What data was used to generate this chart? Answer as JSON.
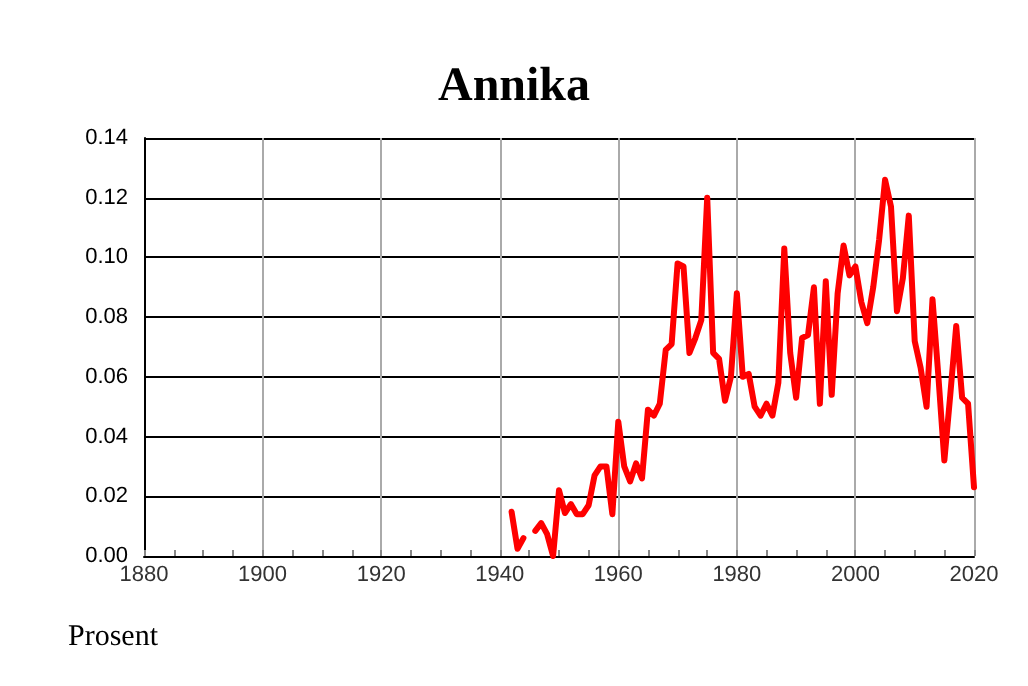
{
  "chart_data": {
    "type": "line",
    "title": "Annika",
    "ylabel": "Prosent",
    "x": [
      1942,
      1943,
      1944,
      1945,
      1946,
      1947,
      1948,
      1949,
      1950,
      1951,
      1952,
      1953,
      1954,
      1955,
      1956,
      1957,
      1958,
      1959,
      1960,
      1961,
      1962,
      1963,
      1964,
      1965,
      1966,
      1967,
      1968,
      1969,
      1970,
      1971,
      1972,
      1973,
      1974,
      1975,
      1976,
      1977,
      1978,
      1979,
      1980,
      1981,
      1982,
      1983,
      1984,
      1985,
      1986,
      1987,
      1988,
      1989,
      1990,
      1991,
      1992,
      1993,
      1994,
      1995,
      1996,
      1997,
      1998,
      1999,
      2000,
      2001,
      2002,
      2003,
      2004,
      2005,
      2006,
      2007,
      2008,
      2009,
      2010,
      2011,
      2012,
      2013,
      2014,
      2015,
      2016,
      2017,
      2018,
      2019,
      2020
    ],
    "series": [
      {
        "color": "#ff0000",
        "values": [
          0.0148,
          0.0024,
          0.006,
          null,
          0.0084,
          0.011,
          0.0073,
          0,
          0.022,
          0.0144,
          0.0174,
          0.014,
          0.014,
          0.017,
          0.027,
          0.03,
          0.03,
          0.014,
          0.045,
          0.03,
          0.025,
          0.031,
          0.026,
          0.049,
          0.047,
          0.051,
          0.069,
          0.071,
          0.098,
          0.097,
          0.068,
          0.073,
          0.079,
          0.12,
          0.068,
          0.066,
          0.052,
          0.06,
          0.088,
          0.06,
          0.061,
          0.05,
          0.047,
          0.051,
          0.047,
          0.058,
          0.103,
          0.068,
          0.053,
          0.073,
          0.074,
          0.09,
          0.051,
          0.092,
          0.054,
          0.088,
          0.104,
          0.094,
          0.097,
          0.085,
          0.078,
          0.09,
          0.106,
          0.126,
          0.117,
          0.082,
          0.093,
          0.114,
          0.072,
          0.063,
          0.05,
          0.086,
          0.06,
          0.032,
          0.054,
          0.077,
          0.053,
          0.051,
          0.023
        ]
      }
    ],
    "xlim": [
      1880,
      2020
    ],
    "xticks": [
      1880,
      1900,
      1920,
      1940,
      1960,
      1980,
      2000,
      2020
    ],
    "ylim": [
      0,
      0.14
    ],
    "yticks": [
      {
        "value": 0,
        "label": "0.00"
      },
      {
        "value": 0.02,
        "label": "0.02"
      },
      {
        "value": 0.04,
        "label": "0.04"
      },
      {
        "value": 0.06,
        "label": "0.06"
      },
      {
        "value": 0.08,
        "label": "0.08"
      },
      {
        "value": 0.1,
        "label": "0.10"
      },
      {
        "value": 0.12,
        "label": "0.12"
      },
      {
        "value": 0.14,
        "label": "0.14"
      }
    ],
    "grid": true,
    "marker": "none",
    "line_style": "solid"
  }
}
